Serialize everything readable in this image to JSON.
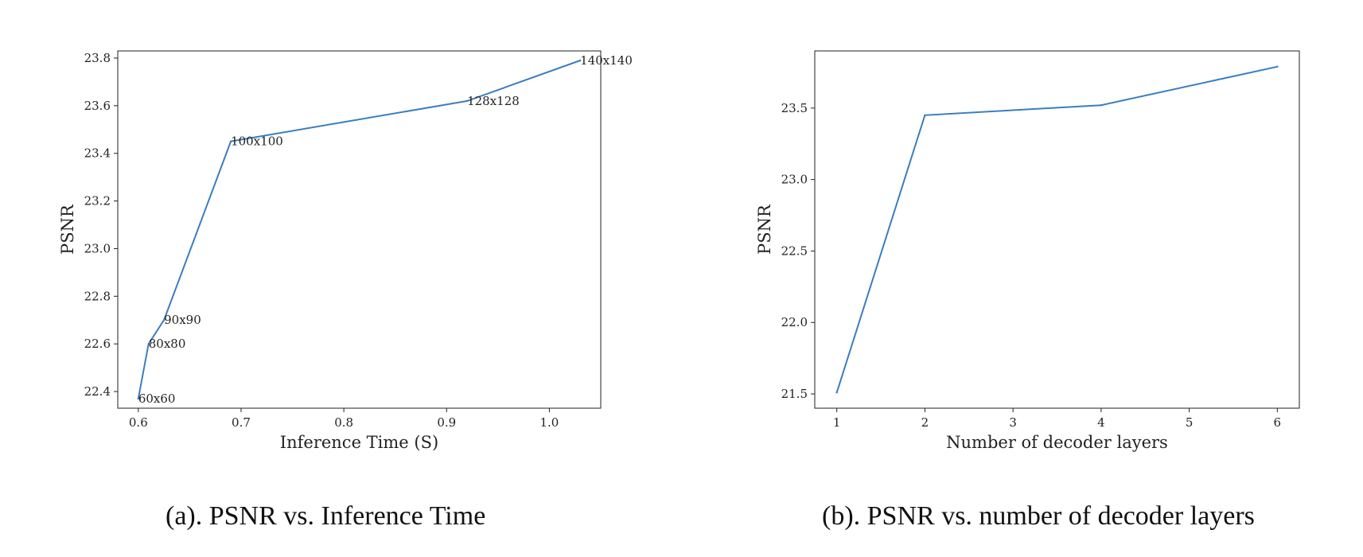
{
  "chart_data": [
    {
      "type": "line",
      "caption": "(a). PSNR vs. Inference Time",
      "xlabel": "Inference Time (S)",
      "ylabel": "PSNR",
      "xlim": [
        0.58,
        1.05
      ],
      "ylim": [
        22.33,
        23.83
      ],
      "xticks": [
        0.6,
        0.7,
        0.8,
        0.9,
        1.0
      ],
      "xtick_labels": [
        "0.6",
        "0.7",
        "0.8",
        "0.9",
        "1.0"
      ],
      "yticks": [
        22.4,
        22.6,
        22.8,
        23.0,
        23.2,
        23.4,
        23.6,
        23.8
      ],
      "ytick_labels": [
        "22.4",
        "22.6",
        "22.8",
        "23.0",
        "23.2",
        "23.4",
        "23.6",
        "23.8"
      ],
      "grid": false,
      "color": "#3a7ebf",
      "x": [
        0.6,
        0.61,
        0.625,
        0.69,
        0.92,
        1.03
      ],
      "y": [
        22.37,
        22.6,
        22.7,
        23.45,
        23.62,
        23.79
      ],
      "point_labels": [
        "60x60",
        "80x80",
        "90x90",
        "100x100",
        "128x128",
        "140x140"
      ]
    },
    {
      "type": "line",
      "caption": "(b). PSNR vs. number of decoder layers",
      "xlabel": "Number of decoder layers",
      "ylabel": "PSNR",
      "xlim": [
        0.75,
        6.25
      ],
      "ylim": [
        21.4,
        23.9
      ],
      "xticks": [
        1,
        2,
        3,
        4,
        5,
        6
      ],
      "xtick_labels": [
        "1",
        "2",
        "3",
        "4",
        "5",
        "6"
      ],
      "yticks": [
        21.5,
        22.0,
        22.5,
        23.0,
        23.5
      ],
      "ytick_labels": [
        "21.5",
        "22.0",
        "22.5",
        "23.0",
        "23.5"
      ],
      "grid": false,
      "color": "#3a7ebf",
      "x": [
        1,
        2,
        4,
        6
      ],
      "y": [
        21.51,
        23.45,
        23.52,
        23.79
      ],
      "point_labels": []
    }
  ]
}
